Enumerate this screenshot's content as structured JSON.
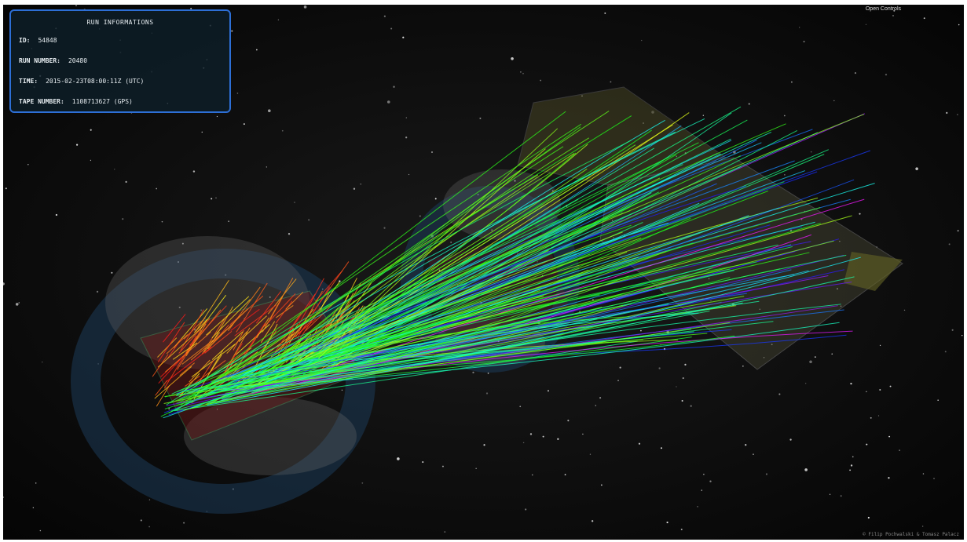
{
  "run_info": {
    "title": "RUN INFORMATIONS",
    "fields": [
      {
        "label": "ID:",
        "value": "54848"
      },
      {
        "label": "RUN NUMBER:",
        "value": "20480"
      },
      {
        "label": "TIME:",
        "value": "2015-02-23T08:00:11Z (UTC)"
      },
      {
        "label": "TAPE NUMBER:",
        "value": "1108713627 (GPS)"
      }
    ]
  },
  "controls": {
    "open": "Open Controls"
  },
  "footer": {
    "credit": "© Filip Pochwalski & Tomasz Palacz"
  }
}
